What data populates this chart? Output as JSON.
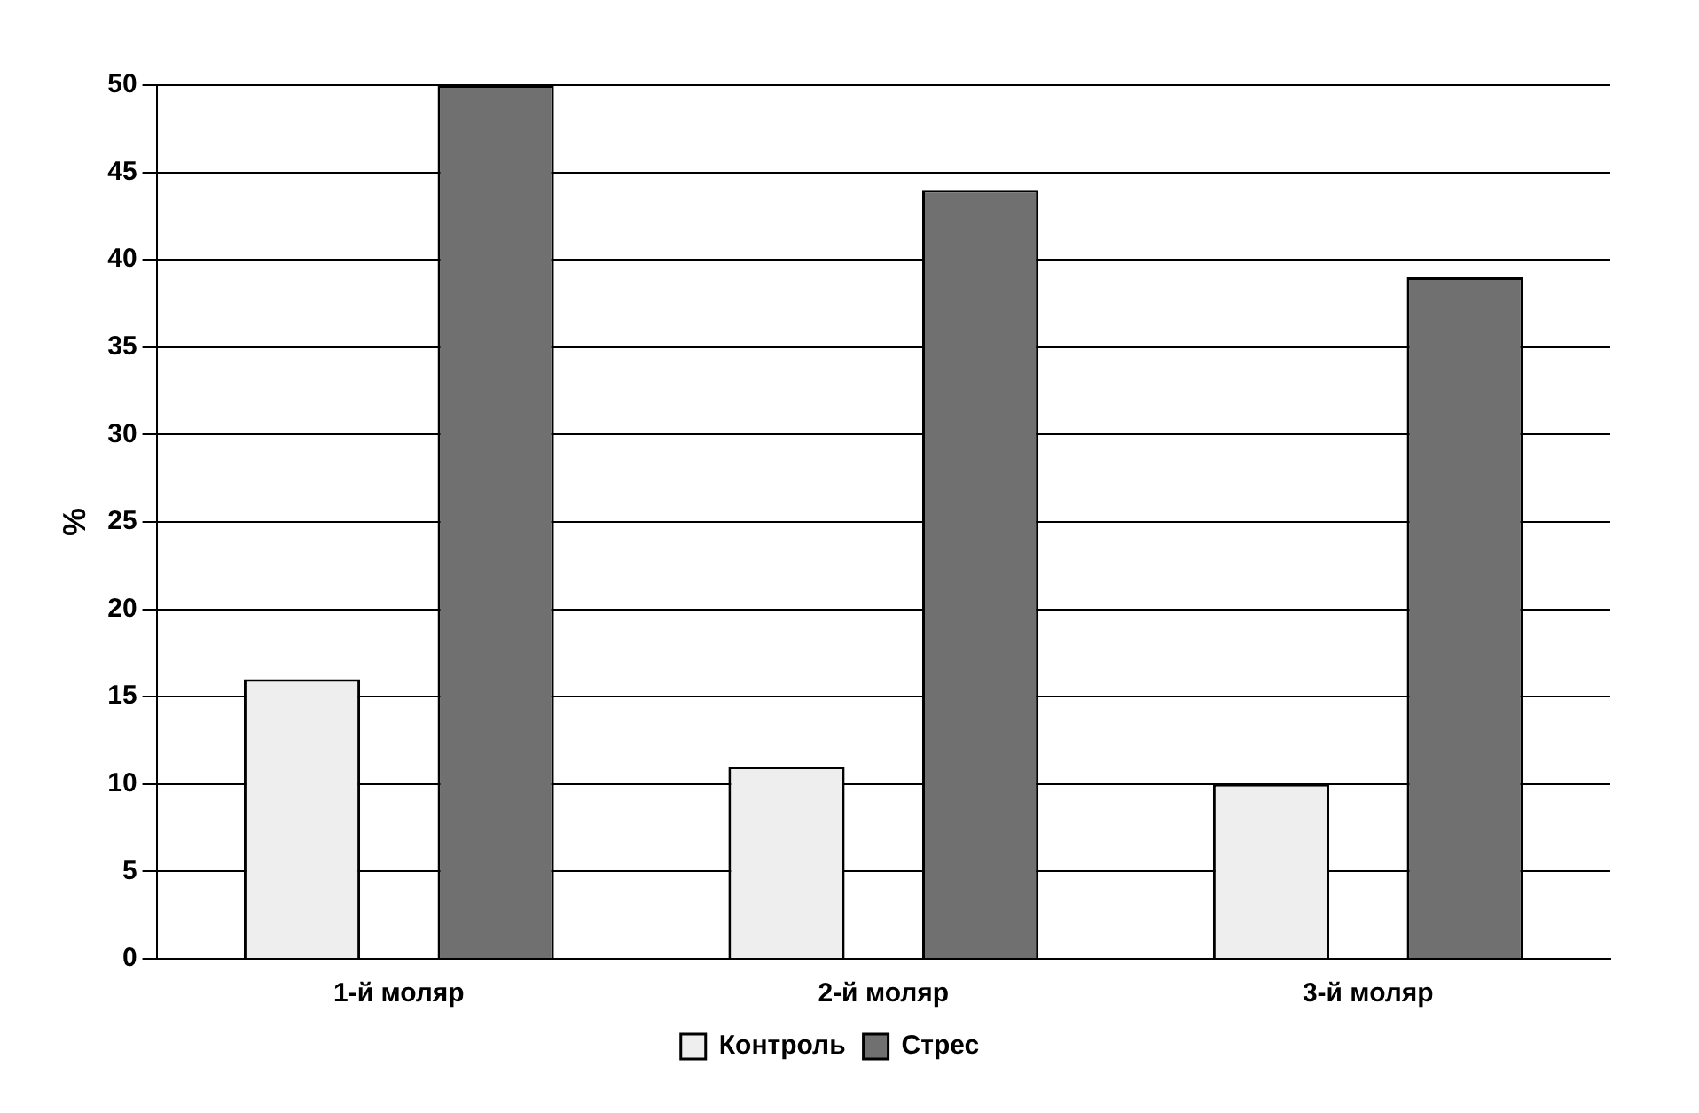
{
  "chart_data": {
    "type": "bar",
    "ylabel": "%",
    "categories": [
      "1-й моляр",
      "2-й моляр",
      "3-й моляр"
    ],
    "series": [
      {
        "name": "Контроль",
        "color": "#eeeeee",
        "values": [
          16,
          11,
          10
        ]
      },
      {
        "name": "Стрес",
        "color": "#707070",
        "values": [
          50,
          44,
          39
        ]
      }
    ],
    "ylim": [
      0,
      50
    ],
    "yticks": [
      0,
      5,
      10,
      15,
      20,
      25,
      30,
      35,
      40,
      45,
      50
    ],
    "grid": "y",
    "legend": "bottom"
  }
}
